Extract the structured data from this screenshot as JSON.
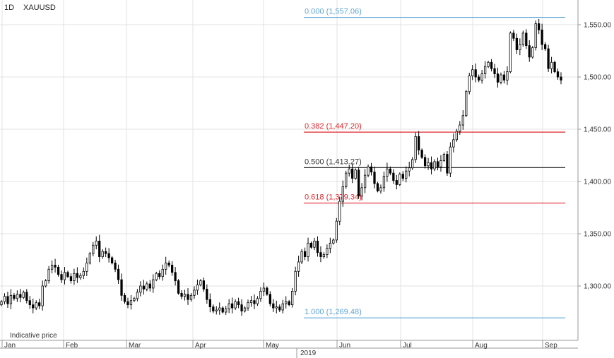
{
  "header": {
    "interval": "1D",
    "symbol": "XAUUSD"
  },
  "footer": {
    "note": "Indicative price",
    "year": "2019"
  },
  "colors": {
    "fib_blue": "#5ea6d6",
    "fib_red": "#e0252b",
    "fib_black": "#333333",
    "candle": "#000000"
  },
  "chart_data": {
    "type": "candlestick",
    "y_ticks": [
      "1,550.00",
      "1,500.00",
      "1,450.00",
      "1,400.00",
      "1,350.00",
      "1,300.00"
    ],
    "y_tick_values": [
      1550,
      1500,
      1450,
      1400,
      1350,
      1300
    ],
    "x_ticks": [
      "Jan",
      "Feb",
      "Mar",
      "Apr",
      "May",
      "Jun",
      "Jul",
      "Aug",
      "Sep"
    ],
    "ylim": [
      1235,
      1580
    ],
    "grid": true,
    "fibonacci": [
      {
        "ratio": 0.0,
        "price": 1557.06,
        "label": "0.000 (1,557.06)",
        "color": "#5ea6d6"
      },
      {
        "ratio": 0.382,
        "price": 1447.2,
        "label": "0.382 (1,447.20)",
        "color": "#e0252b"
      },
      {
        "ratio": 0.5,
        "price": 1413.27,
        "label": "0.500 (1,413.27)",
        "color": "#333333"
      },
      {
        "ratio": 0.618,
        "price": 1379.34,
        "label": "0.618 (1,379.34)",
        "color": "#e0252b"
      },
      {
        "ratio": 1.0,
        "price": 1269.48,
        "label": "1.000 (1,269.48)",
        "color": "#5ea6d6"
      }
    ],
    "close": [
      1285,
      1290,
      1283,
      1291,
      1288,
      1292,
      1289,
      1294,
      1286,
      1282,
      1279,
      1284,
      1281,
      1300,
      1305,
      1316,
      1320,
      1318,
      1311,
      1306,
      1313,
      1309,
      1305,
      1312,
      1308,
      1310,
      1314,
      1322,
      1331,
      1339,
      1343,
      1328,
      1333,
      1331,
      1327,
      1322,
      1316,
      1306,
      1291,
      1285,
      1282,
      1286,
      1288,
      1294,
      1300,
      1297,
      1302,
      1298,
      1306,
      1312,
      1309,
      1316,
      1322,
      1320,
      1313,
      1305,
      1293,
      1290,
      1292,
      1287,
      1291,
      1296,
      1301,
      1305,
      1297,
      1287,
      1280,
      1276,
      1277,
      1279,
      1275,
      1278,
      1283,
      1279,
      1285,
      1282,
      1276,
      1279,
      1284,
      1286,
      1283,
      1288,
      1295,
      1298,
      1292,
      1283,
      1279,
      1280,
      1277,
      1283,
      1285,
      1282,
      1295,
      1314,
      1323,
      1333,
      1328,
      1341,
      1337,
      1343,
      1332,
      1328,
      1330,
      1336,
      1341,
      1344,
      1362,
      1381,
      1395,
      1408,
      1412,
      1403,
      1411,
      1386,
      1394,
      1406,
      1414,
      1409,
      1398,
      1391,
      1394,
      1405,
      1412,
      1408,
      1401,
      1397,
      1407,
      1403,
      1410,
      1413,
      1421,
      1443,
      1430,
      1423,
      1415,
      1418,
      1412,
      1419,
      1414,
      1420,
      1426,
      1408,
      1433,
      1440,
      1448,
      1454,
      1463,
      1486,
      1501,
      1507,
      1500,
      1497,
      1503,
      1510,
      1514,
      1508,
      1503,
      1495,
      1502,
      1497,
      1505,
      1542,
      1537,
      1526,
      1531,
      1542,
      1530,
      1519,
      1528,
      1551,
      1545,
      1531,
      1527,
      1508,
      1514,
      1505,
      1500,
      1497
    ]
  }
}
